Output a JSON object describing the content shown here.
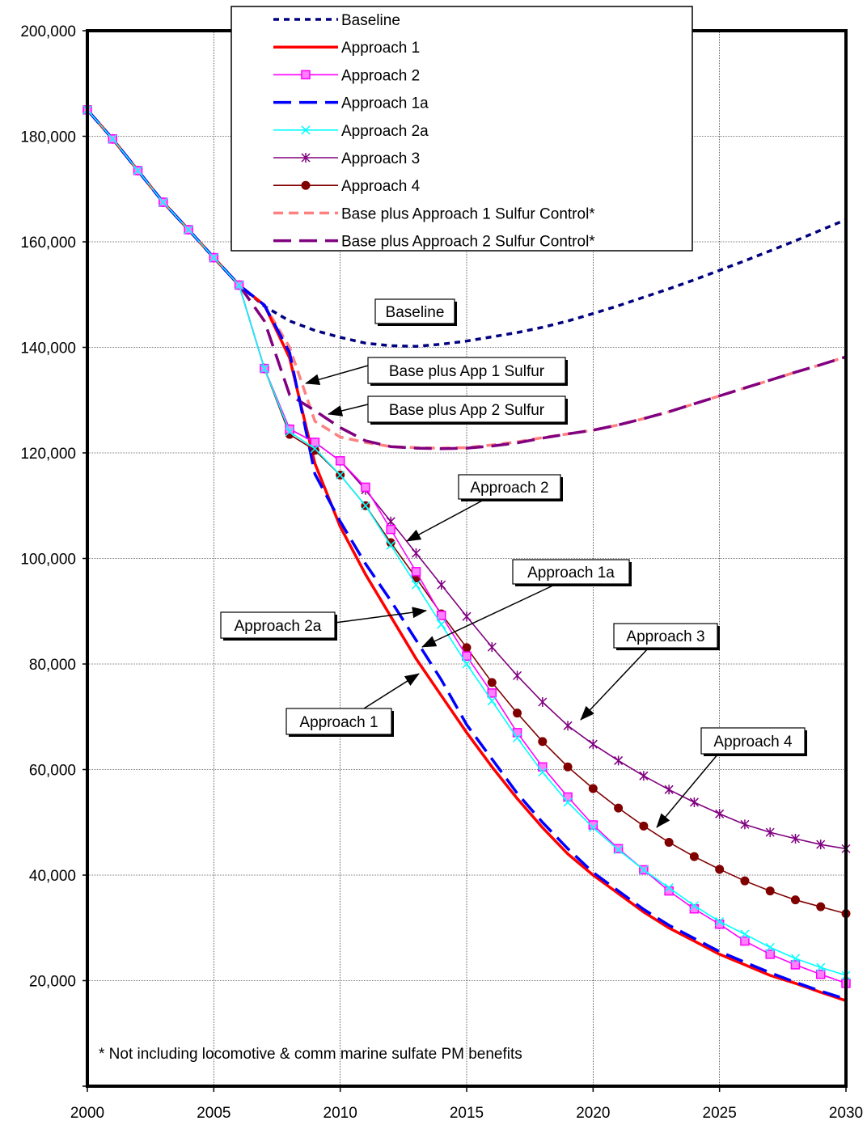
{
  "chart_data": {
    "type": "line",
    "title": "",
    "xlabel": "",
    "ylabel": "",
    "xlim": [
      2000,
      2030
    ],
    "ylim": [
      0,
      200000
    ],
    "x_ticks": [
      2000,
      2005,
      2010,
      2015,
      2020,
      2025,
      2030
    ],
    "y_ticks": [
      20000,
      40000,
      60000,
      80000,
      100000,
      120000,
      140000,
      160000,
      180000,
      200000
    ],
    "y_tick_labels": [
      "20,000",
      "40,000",
      "60,000",
      "80,000",
      "100,000",
      "120,000",
      "140,000",
      "160,000",
      "180,000",
      "200,000"
    ],
    "grid": true,
    "legend_position": "top",
    "x": [
      2000,
      2001,
      2002,
      2003,
      2004,
      2005,
      2006,
      2007,
      2008,
      2009,
      2010,
      2011,
      2012,
      2013,
      2014,
      2015,
      2016,
      2017,
      2018,
      2019,
      2020,
      2021,
      2022,
      2023,
      2024,
      2025,
      2026,
      2027,
      2028,
      2029,
      2030
    ],
    "series": [
      {
        "name": "Baseline",
        "color": "#000080",
        "dash": "7,6",
        "marker": "none",
        "values": [
          185000,
          179500,
          173500,
          167500,
          162300,
          157000,
          151800,
          147800,
          145000,
          143200,
          141900,
          140800,
          140300,
          140200,
          140600,
          141200,
          142000,
          142800,
          143800,
          145000,
          146400,
          147900,
          149500,
          151100,
          152800,
          154600,
          156400,
          158300,
          160200,
          162200,
          164200
        ]
      },
      {
        "name": "Approach 1",
        "color": "#ff0000",
        "dash": "",
        "marker": "none",
        "values": [
          185000,
          179500,
          173500,
          167500,
          162300,
          157000,
          151800,
          148000,
          138000,
          118000,
          106000,
          97000,
          89000,
          81000,
          74000,
          67000,
          60500,
          54500,
          49000,
          44000,
          40000,
          36500,
          33000,
          30000,
          27500,
          25000,
          23000,
          21000,
          19500,
          17800,
          16200
        ]
      },
      {
        "name": "Approach 2",
        "color": "#ff00ff",
        "dash": "",
        "marker": "square",
        "values": [
          185000,
          179500,
          173500,
          167500,
          162300,
          157000,
          151800,
          136000,
          124500,
          122000,
          118500,
          113500,
          105500,
          97500,
          89200,
          81500,
          74500,
          67000,
          60500,
          54800,
          49500,
          45000,
          41000,
          37000,
          33600,
          30700,
          27500,
          25000,
          23000,
          21200,
          19500
        ]
      },
      {
        "name": "Approach 1a",
        "color": "#0000ff",
        "dash": "22,10",
        "marker": "none",
        "values": [
          185000,
          179500,
          173500,
          167500,
          162300,
          157000,
          151800,
          148000,
          139000,
          116000,
          107000,
          99000,
          92000,
          84500,
          77000,
          68500,
          62000,
          55500,
          50000,
          45000,
          40500,
          37000,
          33500,
          30500,
          28000,
          25500,
          23500,
          21500,
          19700,
          18000,
          16500
        ]
      },
      {
        "name": "Approach 2a",
        "color": "#00ffff",
        "dash": "",
        "marker": "x",
        "values": [
          185000,
          179500,
          173500,
          167500,
          162300,
          157000,
          151800,
          136000,
          124000,
          120800,
          115800,
          110000,
          102500,
          95000,
          87500,
          80000,
          73000,
          66000,
          59500,
          53800,
          49000,
          44800,
          41000,
          37600,
          34200,
          31200,
          28800,
          26300,
          24200,
          22500,
          21000
        ]
      },
      {
        "name": "Approach 3",
        "color": "#800080",
        "dash": "",
        "marker": "star",
        "values": [
          185000,
          179500,
          173500,
          167500,
          162300,
          157000,
          151800,
          136000,
          124500,
          122000,
          118500,
          113000,
          107000,
          101000,
          95000,
          89000,
          83200,
          77800,
          72800,
          68300,
          64800,
          61700,
          58800,
          56200,
          53800,
          51600,
          49600,
          48100,
          46900,
          45800,
          45000
        ]
      },
      {
        "name": "Approach 4",
        "color": "#800000",
        "dash": "",
        "marker": "circle",
        "values": [
          185000,
          179500,
          173500,
          167500,
          162300,
          157000,
          151800,
          136000,
          123500,
          120500,
          115800,
          110000,
          103000,
          96300,
          89500,
          83100,
          76500,
          70700,
          65300,
          60500,
          56400,
          52700,
          49300,
          46200,
          43500,
          41100,
          38900,
          37000,
          35300,
          34000,
          32700
        ]
      },
      {
        "name": "Base plus Approach 1 Sulfur Control*",
        "color": "#ff8080",
        "dash": "12,7",
        "marker": "none",
        "values": [
          185000,
          179500,
          173500,
          167500,
          162300,
          157000,
          151800,
          148000,
          140000,
          126000,
          123000,
          122000,
          121200,
          121000,
          120900,
          121000,
          121500,
          122100,
          122900,
          123600,
          124300,
          125300,
          126500,
          127800,
          129300,
          130800,
          132300,
          133800,
          135300,
          136700,
          138200
        ]
      },
      {
        "name": "Base plus Approach 2 Sulfur Control*",
        "color": "#800080",
        "dash": "22,10",
        "marker": "none",
        "values": [
          185000,
          179500,
          173500,
          167500,
          162300,
          157000,
          151800,
          145000,
          131000,
          128000,
          124800,
          122300,
          121200,
          120900,
          120800,
          120900,
          121300,
          121900,
          122800,
          123600,
          124300,
          125300,
          126500,
          127800,
          129300,
          130800,
          132300,
          133800,
          135300,
          136700,
          138200
        ]
      }
    ],
    "callouts": [
      {
        "text": "Baseline",
        "point_to": null
      },
      {
        "text": "Base plus App 1 Sulfur"
      },
      {
        "text": "Base plus App 2 Sulfur"
      },
      {
        "text": "Approach 2"
      },
      {
        "text": "Approach 1a"
      },
      {
        "text": "Approach 2a"
      },
      {
        "text": "Approach 3"
      },
      {
        "text": "Approach 1"
      },
      {
        "text": "Approach 4"
      }
    ],
    "footnote": "*  Not including locomotive & comm marine sulfate PM benefits"
  }
}
